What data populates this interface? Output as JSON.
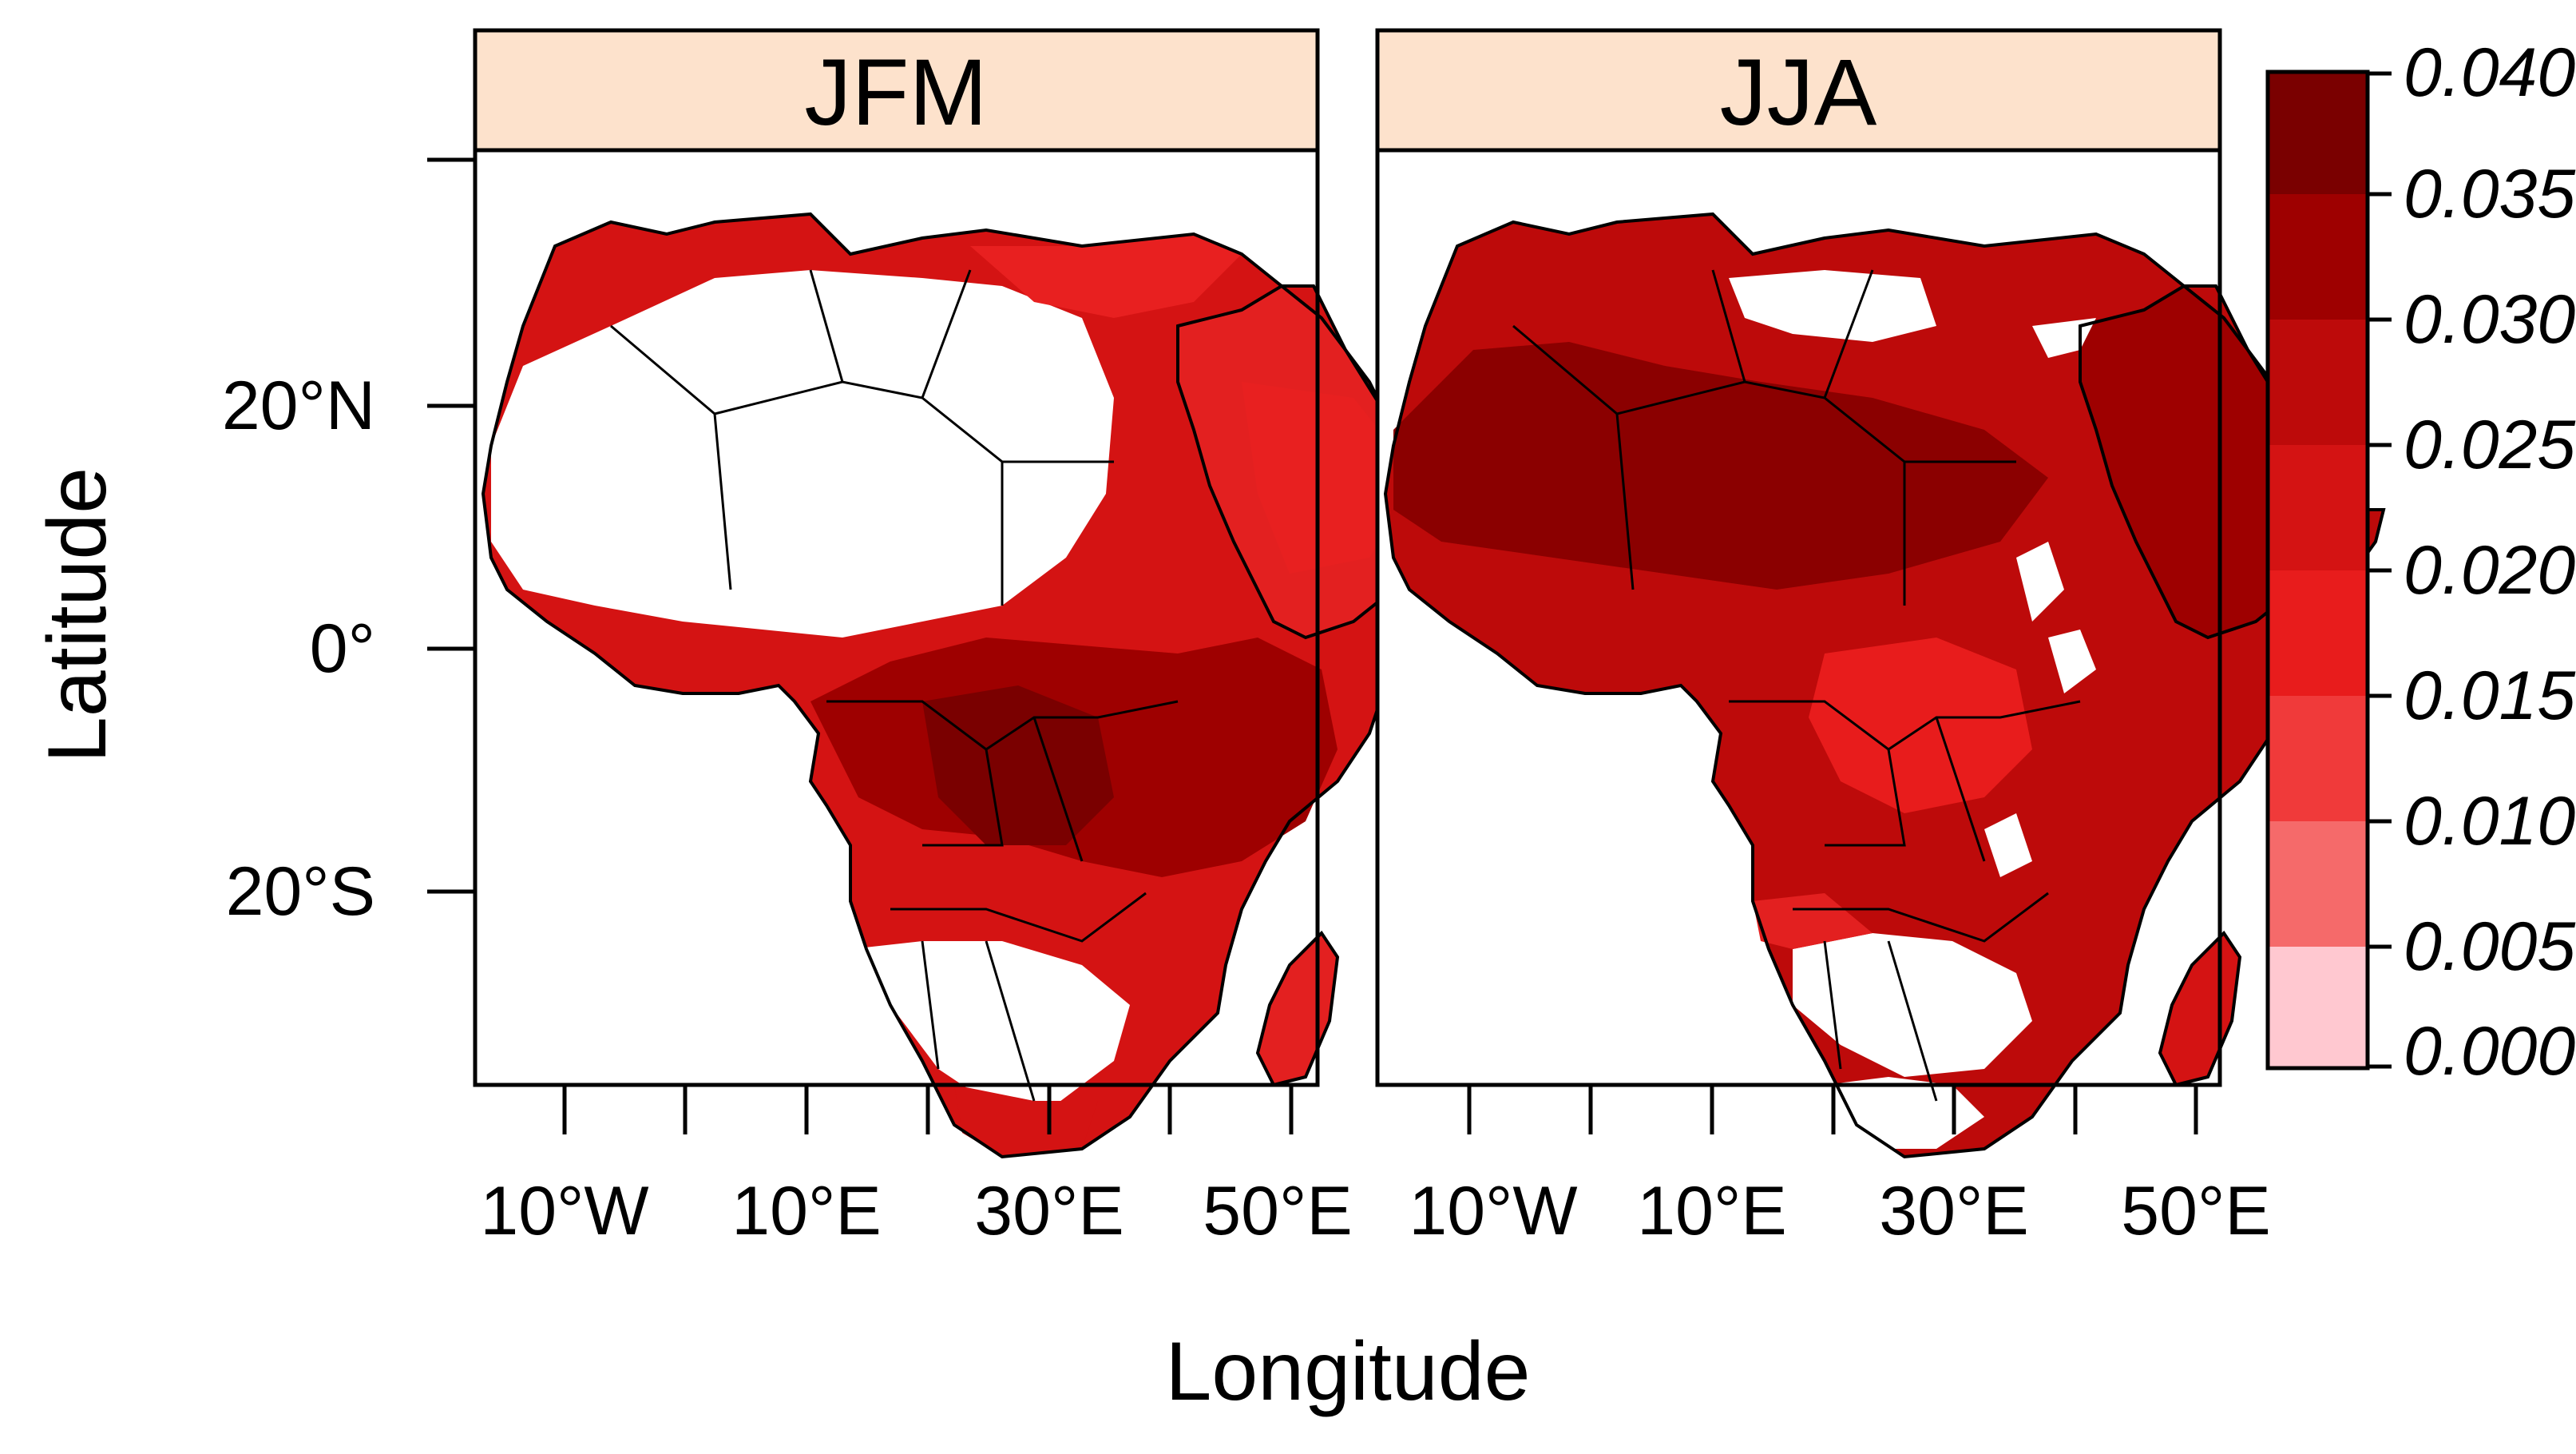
{
  "panels": [
    {
      "title": "JFM"
    },
    {
      "title": "JJA"
    }
  ],
  "axes": {
    "xlabel": "Longitude",
    "ylabel": "Latitude",
    "xticks": [
      "10°W",
      "10°E",
      "30°E",
      "50°E"
    ],
    "yticks": [
      "20°N",
      "0°",
      "20°S"
    ]
  },
  "colorbar": {
    "labels": [
      "0.040",
      "0.035",
      "0.030",
      "0.025",
      "0.020",
      "0.015",
      "0.010",
      "0.005",
      "0.000"
    ],
    "colors": [
      "#7a0000",
      "#9e0000",
      "#bd0a0a",
      "#d41313",
      "#e81c1c",
      "#f03a3a",
      "#f56a6a",
      "#f99a9a",
      "#ffc8d0"
    ]
  },
  "colors": {
    "strip": "#fde2cc",
    "land_dark": "#8b0000",
    "land_mid": "#c81010",
    "land_light": "#e82020",
    "border": "#000000"
  }
}
